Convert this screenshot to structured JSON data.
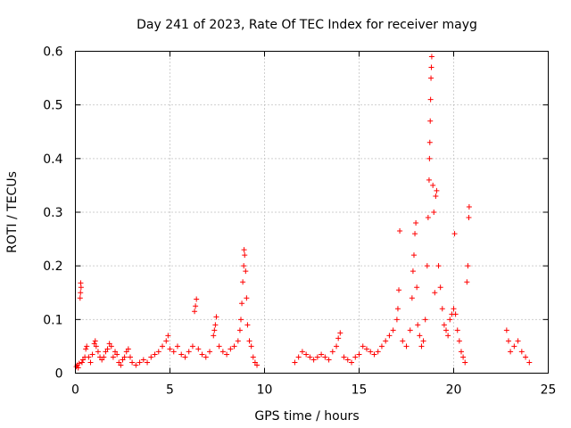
{
  "chart_data": {
    "type": "scatter",
    "title": "Day 241 of 2023, Rate Of TEC Index for receiver mayg",
    "xlabel": "GPS time / hours",
    "ylabel": "ROTI / TECUs",
    "xlim": [
      0,
      25
    ],
    "ylim": [
      0,
      0.6
    ],
    "xticks": [
      0,
      5,
      10,
      15,
      20,
      25
    ],
    "yticks": [
      0,
      0.1,
      0.2,
      0.3,
      0.4,
      0.5,
      0.6
    ],
    "xtick_labels": [
      "0",
      "5",
      "10",
      "15",
      "20",
      "25"
    ],
    "ytick_labels": [
      "0",
      "0.1",
      "0.2",
      "0.3",
      "0.4",
      "0.5",
      "0.6"
    ],
    "grid": true,
    "marker": "+",
    "color": "#ff0000",
    "points": [
      [
        0.05,
        0.012
      ],
      [
        0.1,
        0.015
      ],
      [
        0.15,
        0.01
      ],
      [
        0.2,
        0.018
      ],
      [
        0.25,
        0.14
      ],
      [
        0.27,
        0.15
      ],
      [
        0.3,
        0.16
      ],
      [
        0.28,
        0.168
      ],
      [
        0.35,
        0.02
      ],
      [
        0.4,
        0.025
      ],
      [
        0.5,
        0.03
      ],
      [
        0.55,
        0.045
      ],
      [
        0.6,
        0.05
      ],
      [
        0.7,
        0.03
      ],
      [
        0.8,
        0.02
      ],
      [
        0.9,
        0.035
      ],
      [
        1.0,
        0.055
      ],
      [
        1.05,
        0.06
      ],
      [
        1.1,
        0.05
      ],
      [
        1.2,
        0.04
      ],
      [
        1.3,
        0.03
      ],
      [
        1.4,
        0.025
      ],
      [
        1.5,
        0.03
      ],
      [
        1.6,
        0.04
      ],
      [
        1.7,
        0.045
      ],
      [
        1.8,
        0.055
      ],
      [
        1.9,
        0.05
      ],
      [
        2.0,
        0.03
      ],
      [
        2.1,
        0.04
      ],
      [
        2.2,
        0.035
      ],
      [
        2.3,
        0.02
      ],
      [
        2.4,
        0.015
      ],
      [
        2.5,
        0.025
      ],
      [
        2.6,
        0.03
      ],
      [
        2.7,
        0.04
      ],
      [
        2.8,
        0.045
      ],
      [
        2.9,
        0.03
      ],
      [
        3.0,
        0.02
      ],
      [
        3.2,
        0.015
      ],
      [
        3.4,
        0.02
      ],
      [
        3.6,
        0.025
      ],
      [
        3.8,
        0.02
      ],
      [
        4.0,
        0.03
      ],
      [
        4.2,
        0.035
      ],
      [
        4.4,
        0.04
      ],
      [
        4.6,
        0.05
      ],
      [
        4.8,
        0.06
      ],
      [
        4.9,
        0.07
      ],
      [
        5.0,
        0.045
      ],
      [
        5.2,
        0.04
      ],
      [
        5.4,
        0.05
      ],
      [
        5.6,
        0.035
      ],
      [
        5.8,
        0.03
      ],
      [
        6.0,
        0.04
      ],
      [
        6.2,
        0.05
      ],
      [
        6.3,
        0.115
      ],
      [
        6.35,
        0.125
      ],
      [
        6.4,
        0.138
      ],
      [
        6.5,
        0.045
      ],
      [
        6.7,
        0.035
      ],
      [
        6.9,
        0.03
      ],
      [
        7.1,
        0.04
      ],
      [
        7.3,
        0.07
      ],
      [
        7.35,
        0.08
      ],
      [
        7.4,
        0.09
      ],
      [
        7.45,
        0.105
      ],
      [
        7.6,
        0.05
      ],
      [
        7.8,
        0.04
      ],
      [
        8.0,
        0.035
      ],
      [
        8.2,
        0.045
      ],
      [
        8.4,
        0.05
      ],
      [
        8.6,
        0.06
      ],
      [
        8.7,
        0.08
      ],
      [
        8.75,
        0.1
      ],
      [
        8.8,
        0.13
      ],
      [
        8.85,
        0.17
      ],
      [
        8.9,
        0.2
      ],
      [
        8.95,
        0.22
      ],
      [
        9.0,
        0.19
      ],
      [
        8.92,
        0.23
      ],
      [
        9.05,
        0.14
      ],
      [
        9.1,
        0.09
      ],
      [
        9.2,
        0.06
      ],
      [
        9.3,
        0.05
      ],
      [
        9.4,
        0.03
      ],
      [
        9.5,
        0.02
      ],
      [
        9.6,
        0.015
      ],
      [
        11.6,
        0.02
      ],
      [
        11.8,
        0.03
      ],
      [
        12.0,
        0.04
      ],
      [
        12.2,
        0.035
      ],
      [
        12.4,
        0.03
      ],
      [
        12.6,
        0.025
      ],
      [
        12.8,
        0.03
      ],
      [
        13.0,
        0.035
      ],
      [
        13.2,
        0.03
      ],
      [
        13.4,
        0.025
      ],
      [
        13.6,
        0.04
      ],
      [
        13.8,
        0.05
      ],
      [
        13.9,
        0.065
      ],
      [
        14.0,
        0.075
      ],
      [
        14.2,
        0.03
      ],
      [
        14.4,
        0.025
      ],
      [
        14.6,
        0.02
      ],
      [
        14.8,
        0.03
      ],
      [
        15.0,
        0.035
      ],
      [
        15.2,
        0.05
      ],
      [
        15.4,
        0.045
      ],
      [
        15.6,
        0.04
      ],
      [
        15.8,
        0.035
      ],
      [
        16.0,
        0.04
      ],
      [
        16.2,
        0.05
      ],
      [
        16.4,
        0.06
      ],
      [
        16.6,
        0.07
      ],
      [
        16.8,
        0.08
      ],
      [
        17.0,
        0.1
      ],
      [
        17.05,
        0.12
      ],
      [
        17.1,
        0.155
      ],
      [
        17.15,
        0.265
      ],
      [
        17.3,
        0.06
      ],
      [
        17.5,
        0.05
      ],
      [
        17.7,
        0.08
      ],
      [
        17.8,
        0.14
      ],
      [
        17.85,
        0.19
      ],
      [
        17.9,
        0.22
      ],
      [
        17.95,
        0.26
      ],
      [
        18.0,
        0.28
      ],
      [
        18.05,
        0.16
      ],
      [
        18.1,
        0.09
      ],
      [
        18.2,
        0.07
      ],
      [
        18.3,
        0.05
      ],
      [
        18.4,
        0.06
      ],
      [
        18.5,
        0.1
      ],
      [
        18.6,
        0.2
      ],
      [
        18.65,
        0.29
      ],
      [
        18.7,
        0.36
      ],
      [
        18.72,
        0.4
      ],
      [
        18.74,
        0.43
      ],
      [
        18.76,
        0.47
      ],
      [
        18.78,
        0.51
      ],
      [
        18.8,
        0.55
      ],
      [
        18.82,
        0.57
      ],
      [
        18.84,
        0.59
      ],
      [
        18.9,
        0.35
      ],
      [
        18.95,
        0.3
      ],
      [
        19.0,
        0.15
      ],
      [
        19.05,
        0.33
      ],
      [
        19.1,
        0.34
      ],
      [
        19.2,
        0.2
      ],
      [
        19.3,
        0.16
      ],
      [
        19.4,
        0.12
      ],
      [
        19.5,
        0.09
      ],
      [
        19.6,
        0.08
      ],
      [
        19.7,
        0.07
      ],
      [
        19.8,
        0.1
      ],
      [
        19.9,
        0.11
      ],
      [
        20.0,
        0.12
      ],
      [
        20.05,
        0.26
      ],
      [
        20.1,
        0.11
      ],
      [
        20.2,
        0.08
      ],
      [
        20.3,
        0.06
      ],
      [
        20.4,
        0.04
      ],
      [
        20.5,
        0.03
      ],
      [
        20.6,
        0.02
      ],
      [
        20.7,
        0.17
      ],
      [
        20.75,
        0.2
      ],
      [
        20.8,
        0.29
      ],
      [
        20.82,
        0.31
      ],
      [
        22.8,
        0.08
      ],
      [
        22.9,
        0.06
      ],
      [
        23.0,
        0.04
      ],
      [
        23.2,
        0.05
      ],
      [
        23.4,
        0.06
      ],
      [
        23.6,
        0.04
      ],
      [
        23.8,
        0.03
      ],
      [
        24.0,
        0.02
      ]
    ]
  }
}
